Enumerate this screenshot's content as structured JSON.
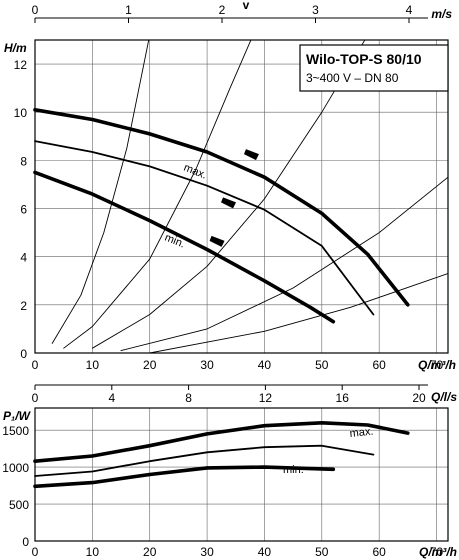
{
  "chart_data": [
    {
      "type": "line",
      "title": "Wilo-TOP-S 80/10",
      "subtitle": "3~400 V – DN 80",
      "xlabel": "Q/m³/h",
      "ylabel": "H/m",
      "xlim": [
        0,
        72
      ],
      "ylim": [
        0,
        13
      ],
      "x_ticks": [
        "0",
        "10",
        "20",
        "30",
        "40",
        "50",
        "60",
        "70"
      ],
      "y_ticks": [
        "0",
        "2",
        "4",
        "6",
        "8",
        "10",
        "12"
      ],
      "top_axis": {
        "label": "v",
        "unit": "m/s",
        "ticks": [
          "0",
          "1",
          "2",
          "3",
          "4"
        ]
      },
      "grid": true,
      "series": [
        {
          "name": "max.",
          "role": "pump-curve",
          "points": [
            [
              0,
              10.1
            ],
            [
              10,
              9.7
            ],
            [
              20,
              9.1
            ],
            [
              30,
              8.35
            ],
            [
              40,
              7.3
            ],
            [
              50,
              5.8
            ],
            [
              58,
              4.1
            ],
            [
              65,
              2.0
            ]
          ]
        },
        {
          "role": "pump-curve",
          "points": [
            [
              0,
              8.8
            ],
            [
              10,
              8.35
            ],
            [
              20,
              7.75
            ],
            [
              30,
              6.95
            ],
            [
              40,
              5.95
            ],
            [
              50,
              4.45
            ],
            [
              59,
              1.6
            ]
          ]
        },
        {
          "name": "min.",
          "role": "pump-curve",
          "points": [
            [
              0,
              7.5
            ],
            [
              10,
              6.6
            ],
            [
              20,
              5.5
            ],
            [
              30,
              4.3
            ],
            [
              40,
              3.0
            ],
            [
              48,
              1.9
            ],
            [
              52,
              1.3
            ]
          ]
        },
        {
          "role": "system-curve",
          "points": [
            [
              3,
              0.4
            ],
            [
              8,
              2.4
            ],
            [
              12,
              5.0
            ],
            [
              16,
              8.5
            ],
            [
              20,
              13.2
            ]
          ]
        },
        {
          "role": "system-curve",
          "points": [
            [
              5,
              0.2
            ],
            [
              10,
              1.1
            ],
            [
              20,
              3.9
            ],
            [
              28,
              7.6
            ],
            [
              34,
              11.0
            ],
            [
              38,
              13.2
            ]
          ]
        },
        {
          "role": "system-curve",
          "points": [
            [
              10,
              0.2
            ],
            [
              20,
              1.6
            ],
            [
              30,
              3.6
            ],
            [
              40,
              6.4
            ],
            [
              50,
              10.0
            ],
            [
              58,
              13.2
            ]
          ]
        },
        {
          "role": "system-curve",
          "points": [
            [
              15,
              0.1
            ],
            [
              30,
              1.0
            ],
            [
              45,
              2.7
            ],
            [
              60,
              5.0
            ],
            [
              72,
              7.3
            ]
          ]
        },
        {
          "role": "system-curve",
          "points": [
            [
              20,
              0.0
            ],
            [
              40,
              0.9
            ],
            [
              55,
              1.9
            ],
            [
              72,
              3.3
            ]
          ]
        }
      ]
    },
    {
      "type": "line",
      "xlabel": "Q/m³/h",
      "ylabel": "P₁/W",
      "xlim": [
        0,
        72
      ],
      "ylim": [
        0,
        1800
      ],
      "x_ticks": [
        "0",
        "10",
        "20",
        "30",
        "40",
        "50",
        "60",
        "70"
      ],
      "y_ticks": [
        "0",
        "500",
        "1000",
        "1500"
      ],
      "top_axis": {
        "unit": "Q/l/s",
        "ticks": [
          "0",
          "4",
          "8",
          "12",
          "16",
          "20"
        ]
      },
      "grid": true,
      "series": [
        {
          "name": "max.",
          "points": [
            [
              0,
              1080
            ],
            [
              10,
              1150
            ],
            [
              20,
              1290
            ],
            [
              30,
              1450
            ],
            [
              40,
              1560
            ],
            [
              50,
              1600
            ],
            [
              58,
              1570
            ],
            [
              65,
              1460
            ]
          ]
        },
        {
          "points": [
            [
              0,
              880
            ],
            [
              10,
              940
            ],
            [
              20,
              1080
            ],
            [
              30,
              1200
            ],
            [
              40,
              1270
            ],
            [
              50,
              1290
            ],
            [
              59,
              1170
            ]
          ]
        },
        {
          "name": "min.",
          "points": [
            [
              0,
              740
            ],
            [
              10,
              790
            ],
            [
              20,
              900
            ],
            [
              30,
              990
            ],
            [
              40,
              1000
            ],
            [
              52,
              970
            ]
          ]
        }
      ]
    }
  ]
}
